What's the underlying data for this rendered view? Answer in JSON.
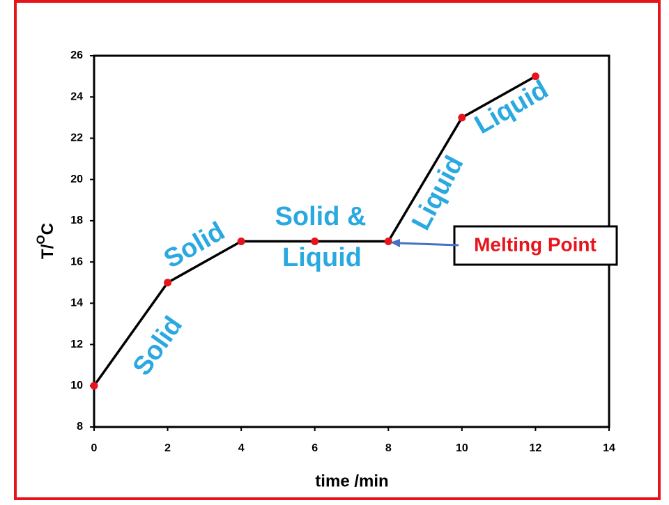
{
  "chart_data": {
    "type": "line",
    "x_label": "time /min",
    "y_label": [
      "T/",
      "O",
      "C"
    ],
    "x": [
      0,
      2,
      4,
      6,
      8,
      10,
      12
    ],
    "values": [
      10,
      15,
      17,
      17,
      17,
      23,
      25
    ],
    "color": "#000000",
    "marker_color": "#e8141c",
    "xlim": [
      0,
      14
    ],
    "xticks": [
      0,
      2,
      4,
      6,
      8,
      10,
      12,
      14
    ],
    "ylim": [
      8,
      26
    ],
    "yticks": [
      8,
      10,
      12,
      14,
      16,
      18,
      20,
      22,
      24,
      26
    ],
    "annotations": [
      {
        "text": "Solid"
      },
      {
        "text": "Solid"
      },
      {
        "text": "Solid &"
      },
      {
        "text": "Liquid"
      },
      {
        "text": "Liquid"
      },
      {
        "text": "Liquid"
      },
      {
        "text": "Melting Point"
      }
    ]
  }
}
